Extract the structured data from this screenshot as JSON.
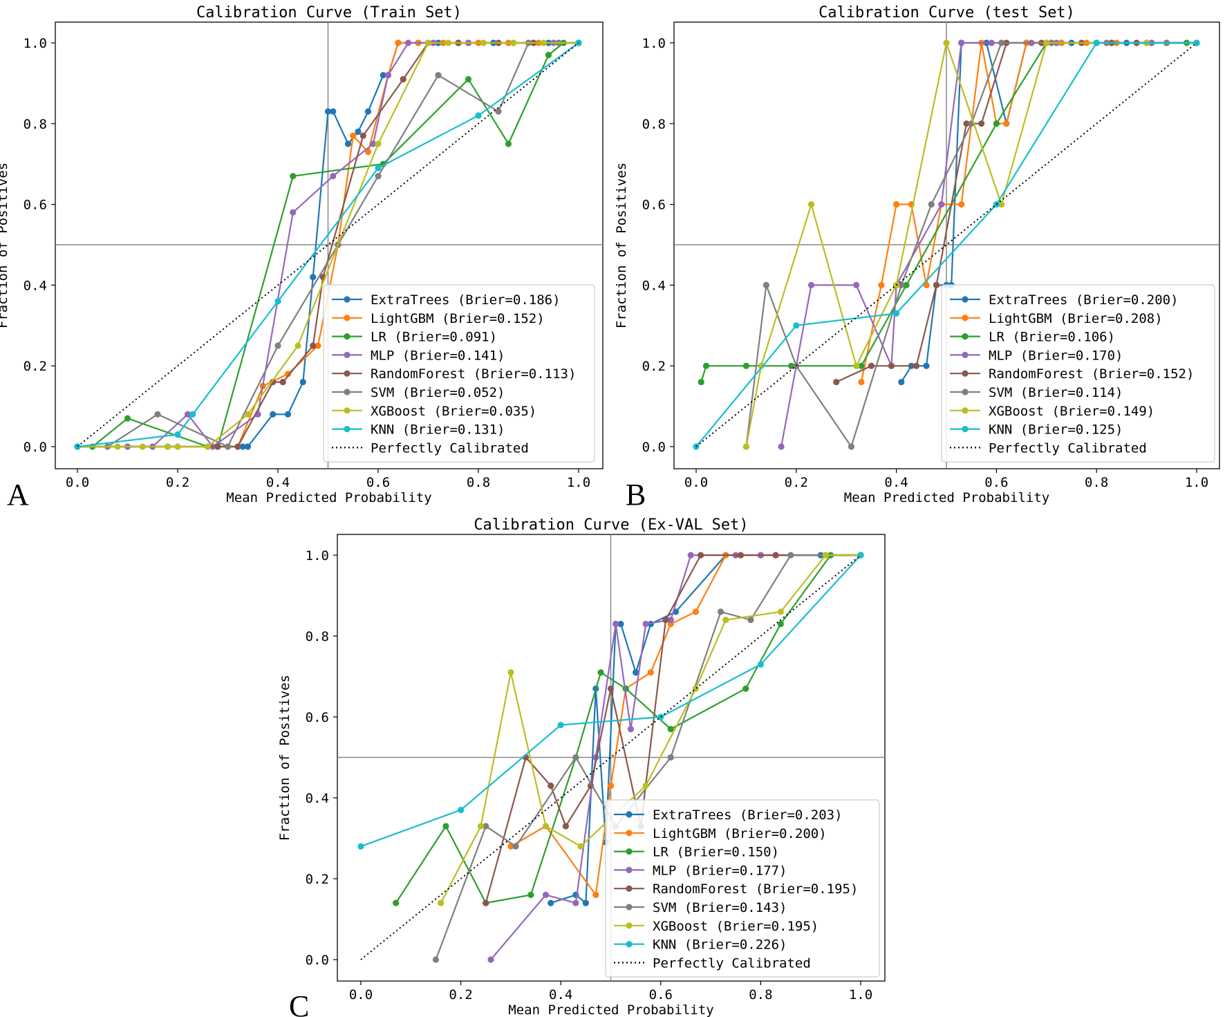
{
  "chart_data": [
    {
      "type": "line",
      "panel_label": "A",
      "title": "Calibration Curve (Train Set)",
      "xlabel": "Mean Predicted Probability",
      "ylabel": "Fraction of Positives",
      "xlim": [
        0,
        1
      ],
      "ylim": [
        0,
        1
      ],
      "x_ticks": [
        "0.0",
        "0.2",
        "0.4",
        "0.6",
        "0.8",
        "1.0"
      ],
      "y_ticks": [
        "0.0",
        "0.2",
        "0.4",
        "0.6",
        "0.8",
        "1.0"
      ],
      "reference_lines": {
        "x": 0.5,
        "y": 0.5
      },
      "legend_position": "lower-right",
      "series": [
        {
          "name": "ExtraTrees (Brier=0.186)",
          "color": "#1f77b4",
          "x": [
            0.0,
            0.33,
            0.34,
            0.39,
            0.42,
            0.45,
            0.47,
            0.5,
            0.51,
            0.54,
            0.56,
            0.58,
            0.61,
            0.62,
            0.64,
            0.68,
            0.7,
            0.72,
            0.76,
            0.78,
            0.83,
            0.87,
            0.94,
            1.0
          ],
          "y": [
            0.0,
            0.0,
            0.0,
            0.08,
            0.08,
            0.16,
            0.42,
            0.83,
            0.83,
            0.75,
            0.78,
            0.83,
            0.92,
            0.92,
            1.0,
            1.0,
            1.0,
            1.0,
            1.0,
            1.0,
            1.0,
            1.0,
            1.0,
            1.0
          ]
        },
        {
          "name": "LightGBM (Brier=0.152)",
          "color": "#ff7f0e",
          "x": [
            0.0,
            0.32,
            0.37,
            0.42,
            0.48,
            0.52,
            0.55,
            0.58,
            0.62,
            0.64,
            0.68,
            0.73,
            0.8,
            0.86,
            0.92,
            0.96,
            1.0
          ],
          "y": [
            0.0,
            0.0,
            0.15,
            0.18,
            0.25,
            0.5,
            0.77,
            0.73,
            0.92,
            1.0,
            1.0,
            1.0,
            1.0,
            1.0,
            1.0,
            1.0,
            1.0
          ]
        },
        {
          "name": "LR (Brier=0.091)",
          "color": "#2ca02c",
          "x": [
            0.0,
            0.03,
            0.1,
            0.26,
            0.28,
            0.43,
            0.61,
            0.78,
            0.86,
            0.94,
            0.97,
            1.0
          ],
          "y": [
            0.0,
            0.0,
            0.07,
            0.0,
            0.0,
            0.67,
            0.7,
            0.91,
            0.75,
            0.97,
            1.0,
            1.0
          ]
        },
        {
          "name": "MLP (Brier=0.141)",
          "color": "#9467bd",
          "x": [
            0.0,
            0.1,
            0.15,
            0.22,
            0.27,
            0.36,
            0.43,
            0.51,
            0.59,
            0.62,
            0.66,
            0.71,
            0.78,
            0.9,
            0.95,
            1.0
          ],
          "y": [
            0.0,
            0.0,
            0.0,
            0.08,
            0.0,
            0.08,
            0.58,
            0.67,
            0.75,
            0.92,
            1.0,
            1.0,
            1.0,
            1.0,
            1.0,
            1.0
          ]
        },
        {
          "name": "RandomForest (Brier=0.113)",
          "color": "#8c564b",
          "x": [
            0.0,
            0.18,
            0.28,
            0.32,
            0.39,
            0.41,
            0.47,
            0.49,
            0.57,
            0.65,
            0.7,
            0.76,
            0.84,
            0.91,
            1.0
          ],
          "y": [
            0.0,
            0.0,
            0.0,
            0.0,
            0.16,
            0.16,
            0.25,
            0.42,
            0.77,
            0.91,
            1.0,
            1.0,
            1.0,
            1.0,
            1.0
          ],
          "x_comment": ""
        },
        {
          "name": "SVM (Brier=0.052)",
          "color": "#7f7f7f",
          "x": [
            0.0,
            0.06,
            0.16,
            0.3,
            0.4,
            0.52,
            0.6,
            0.72,
            0.84,
            0.9,
            0.96,
            1.0
          ],
          "y": [
            0.0,
            0.0,
            0.08,
            0.0,
            0.25,
            0.5,
            0.67,
            0.92,
            0.83,
            1.0,
            1.0,
            1.0
          ]
        },
        {
          "name": "XGBoost (Brier=0.035)",
          "color": "#bcbd22",
          "x": [
            0.0,
            0.08,
            0.13,
            0.18,
            0.2,
            0.26,
            0.34,
            0.44,
            0.6,
            0.7,
            0.74,
            0.81,
            0.87,
            0.93,
            1.0
          ],
          "y": [
            0.0,
            0.0,
            0.0,
            0.0,
            0.0,
            0.0,
            0.08,
            0.25,
            0.75,
            1.0,
            1.0,
            1.0,
            1.0,
            1.0,
            1.0
          ]
        },
        {
          "name": "KNN (Brier=0.131)",
          "color": "#17becf",
          "x": [
            0.0,
            0.2,
            0.23,
            0.4,
            0.6,
            0.8,
            1.0
          ],
          "y": [
            0.0,
            0.03,
            0.08,
            0.36,
            0.69,
            0.82,
            1.0
          ]
        },
        {
          "name": "Perfectly Calibrated",
          "color": "#000000",
          "dotted": true,
          "x": [
            0,
            1
          ],
          "y": [
            0,
            1
          ]
        }
      ]
    },
    {
      "type": "line",
      "panel_label": "B",
      "title": "Calibration Curve (test Set)",
      "xlabel": "Mean Predicted Probability",
      "ylabel": "Fraction of Positives",
      "xlim": [
        0,
        1
      ],
      "ylim": [
        0,
        1
      ],
      "x_ticks": [
        "0.0",
        "0.2",
        "0.4",
        "0.6",
        "0.8",
        "1.0"
      ],
      "y_ticks": [
        "0.0",
        "0.2",
        "0.4",
        "0.6",
        "0.8",
        "1.0"
      ],
      "reference_lines": {
        "x": 0.5,
        "y": 0.5
      },
      "legend_position": "lower-right",
      "series": [
        {
          "name": "ExtraTrees (Brier=0.200)",
          "color": "#1f77b4",
          "x": [
            0.41,
            0.43,
            0.46,
            0.48,
            0.5,
            0.51,
            0.53,
            0.58,
            0.62,
            0.66,
            0.71,
            0.75,
            0.8,
            0.86,
            0.94,
            1.0
          ],
          "y": [
            0.16,
            0.2,
            0.2,
            0.4,
            0.4,
            0.4,
            1.0,
            1.0,
            0.8,
            1.0,
            1.0,
            1.0,
            1.0,
            1.0,
            1.0,
            1.0
          ]
        },
        {
          "name": "LightGBM (Brier=0.208)",
          "color": "#ff7f0e",
          "x": [
            0.33,
            0.37,
            0.4,
            0.43,
            0.46,
            0.49,
            0.53,
            0.57,
            0.6,
            0.62,
            0.66,
            0.73,
            0.78,
            0.84,
            0.91,
            1.0
          ],
          "y": [
            0.16,
            0.4,
            0.6,
            0.6,
            0.4,
            0.6,
            0.6,
            1.0,
            0.8,
            0.8,
            1.0,
            1.0,
            1.0,
            1.0,
            1.0,
            1.0
          ]
        },
        {
          "name": "LR (Brier=0.106)",
          "color": "#2ca02c",
          "x": [
            0.01,
            0.02,
            0.1,
            0.19,
            0.33,
            0.42,
            0.6,
            0.7,
            0.8,
            0.9,
            0.98,
            1.0
          ],
          "y": [
            0.16,
            0.2,
            0.2,
            0.2,
            0.2,
            0.4,
            0.8,
            1.0,
            1.0,
            1.0,
            1.0,
            1.0
          ]
        },
        {
          "name": "MLP (Brier=0.170)",
          "color": "#9467bd",
          "x": [
            0.17,
            0.23,
            0.32,
            0.39,
            0.4,
            0.49,
            0.53,
            0.59,
            0.67,
            0.72,
            0.83,
            0.91,
            1.0
          ],
          "y": [
            0.0,
            0.4,
            0.4,
            0.2,
            0.4,
            0.6,
            1.0,
            1.0,
            1.0,
            1.0,
            1.0,
            1.0,
            1.0
          ]
        },
        {
          "name": "RandomForest (Brier=0.152)",
          "color": "#8c564b",
          "x": [
            0.28,
            0.35,
            0.39,
            0.44,
            0.48,
            0.54,
            0.57,
            0.62,
            0.69,
            0.77,
            0.83,
            0.88,
            1.0
          ],
          "y": [
            0.16,
            0.2,
            0.2,
            0.2,
            0.4,
            0.8,
            0.8,
            1.0,
            1.0,
            1.0,
            1.0,
            1.0,
            1.0
          ]
        },
        {
          "name": "SVM (Brier=0.114)",
          "color": "#7f7f7f",
          "x": [
            0.1,
            0.14,
            0.2,
            0.31,
            0.41,
            0.47,
            0.55,
            0.61,
            0.71,
            0.82,
            0.94,
            1.0
          ],
          "y": [
            0.0,
            0.4,
            0.2,
            0.0,
            0.4,
            0.6,
            0.8,
            1.0,
            1.0,
            1.0,
            1.0,
            1.0
          ]
        },
        {
          "name": "XGBoost (Brier=0.149)",
          "color": "#bcbd22",
          "x": [
            0.1,
            0.13,
            0.23,
            0.32,
            0.4,
            0.5,
            0.61,
            0.7,
            0.8,
            0.9,
            1.0
          ],
          "y": [
            0.0,
            0.2,
            0.6,
            0.2,
            0.4,
            1.0,
            0.6,
            1.0,
            1.0,
            1.0,
            1.0
          ]
        },
        {
          "name": "KNN (Brier=0.125)",
          "color": "#17becf",
          "x": [
            0.0,
            0.2,
            0.4,
            0.6,
            0.8,
            1.0
          ],
          "y": [
            0.0,
            0.3,
            0.33,
            0.6,
            1.0,
            1.0
          ]
        },
        {
          "name": "Perfectly Calibrated",
          "color": "#000000",
          "dotted": true,
          "x": [
            0,
            1
          ],
          "y": [
            0,
            1
          ]
        }
      ]
    },
    {
      "type": "line",
      "panel_label": "C",
      "title": "Calibration Curve (Ex-VAL Set)",
      "xlabel": "Mean Predicted Probability",
      "ylabel": "Fraction of Positives",
      "xlim": [
        0,
        1
      ],
      "ylim": [
        0,
        1
      ],
      "x_ticks": [
        "0.0",
        "0.2",
        "0.4",
        "0.6",
        "0.8",
        "1.0"
      ],
      "y_ticks": [
        "0.0",
        "0.2",
        "0.4",
        "0.6",
        "0.8",
        "1.0"
      ],
      "reference_lines": {
        "x": 0.5,
        "y": 0.5
      },
      "legend_position": "lower-right",
      "series": [
        {
          "name": "ExtraTrees (Brier=0.203)",
          "color": "#1f77b4",
          "x": [
            0.38,
            0.43,
            0.45,
            0.47,
            0.49,
            0.51,
            0.52,
            0.55,
            0.58,
            0.63,
            0.73,
            0.8,
            0.92,
            1.0
          ],
          "y": [
            0.14,
            0.16,
            0.14,
            0.67,
            0.29,
            0.83,
            0.83,
            0.71,
            0.83,
            0.86,
            1.0,
            1.0,
            1.0,
            1.0
          ]
        },
        {
          "name": "LightGBM (Brier=0.200)",
          "color": "#ff7f0e",
          "x": [
            0.3,
            0.37,
            0.47,
            0.5,
            0.53,
            0.58,
            0.62,
            0.67,
            0.73,
            0.8,
            1.0
          ],
          "y": [
            0.28,
            0.33,
            0.16,
            0.43,
            0.67,
            0.71,
            0.83,
            0.86,
            1.0,
            1.0,
            1.0
          ]
        },
        {
          "name": "LR (Brier=0.150)",
          "color": "#2ca02c",
          "x": [
            0.07,
            0.17,
            0.25,
            0.34,
            0.43,
            0.48,
            0.53,
            0.62,
            0.77,
            0.84,
            0.94,
            1.0
          ],
          "y": [
            0.14,
            0.33,
            0.14,
            0.16,
            0.5,
            0.71,
            0.67,
            0.57,
            0.67,
            0.83,
            1.0,
            1.0
          ]
        },
        {
          "name": "MLP (Brier=0.177)",
          "color": "#9467bd",
          "x": [
            0.26,
            0.37,
            0.43,
            0.47,
            0.51,
            0.54,
            0.57,
            0.62,
            0.66,
            0.75,
            0.8,
            1.0
          ],
          "y": [
            0.0,
            0.16,
            0.14,
            0.5,
            0.83,
            0.57,
            0.83,
            0.84,
            1.0,
            1.0,
            1.0,
            1.0
          ]
        },
        {
          "name": "RandomForest (Brier=0.195)",
          "color": "#8c564b",
          "x": [
            0.25,
            0.33,
            0.38,
            0.41,
            0.46,
            0.5,
            0.56,
            0.61,
            0.68,
            0.76,
            0.83,
            1.0
          ],
          "y": [
            0.14,
            0.5,
            0.43,
            0.33,
            0.43,
            0.67,
            0.33,
            0.84,
            1.0,
            1.0,
            1.0,
            1.0
          ]
        },
        {
          "name": "SVM (Brier=0.143)",
          "color": "#7f7f7f",
          "x": [
            0.15,
            0.25,
            0.31,
            0.43,
            0.51,
            0.62,
            0.72,
            0.78,
            0.86,
            0.93,
            1.0
          ],
          "y": [
            0.0,
            0.33,
            0.28,
            0.5,
            0.33,
            0.5,
            0.86,
            0.84,
            1.0,
            1.0,
            1.0
          ]
        },
        {
          "name": "XGBoost (Brier=0.195)",
          "color": "#bcbd22",
          "x": [
            0.16,
            0.24,
            0.3,
            0.37,
            0.44,
            0.57,
            0.67,
            0.73,
            0.84,
            0.93,
            1.0
          ],
          "y": [
            0.14,
            0.33,
            0.71,
            0.33,
            0.28,
            0.43,
            0.67,
            0.84,
            0.86,
            1.0,
            1.0
          ]
        },
        {
          "name": "KNN (Brier=0.226)",
          "color": "#17becf",
          "x": [
            0.0,
            0.2,
            0.4,
            0.6,
            0.8,
            1.0
          ],
          "y": [
            0.28,
            0.37,
            0.58,
            0.6,
            0.73,
            1.0
          ]
        },
        {
          "name": "Perfectly Calibrated",
          "color": "#000000",
          "dotted": true,
          "x": [
            0,
            1
          ],
          "y": [
            0,
            1
          ]
        }
      ]
    }
  ]
}
